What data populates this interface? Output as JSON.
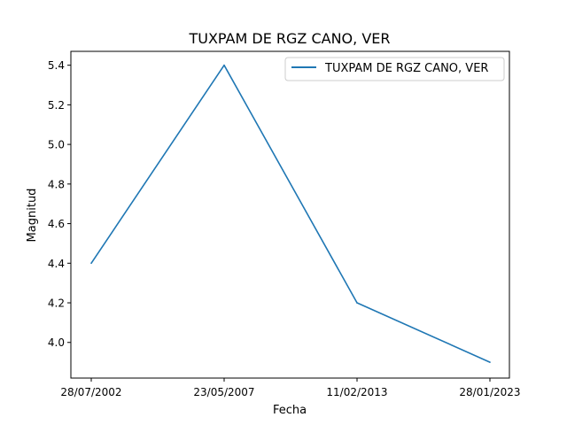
{
  "chart_data": {
    "type": "line",
    "title": "TUXPAM DE RGZ CANO, VER",
    "xlabel": "Fecha",
    "ylabel": "Magnitud",
    "categories": [
      "28/07/2002",
      "23/05/2007",
      "11/02/2013",
      "28/01/2023"
    ],
    "series": [
      {
        "name": "TUXPAM DE RGZ CANO, VER",
        "values": [
          4.4,
          5.4,
          4.2,
          3.9
        ],
        "color": "#1f77b4"
      }
    ],
    "ylim": [
      3.82,
      5.47
    ],
    "yticks": [
      "4.0",
      "4.2",
      "4.4",
      "4.6",
      "4.8",
      "5.0",
      "5.2",
      "5.4"
    ],
    "grid": false,
    "legend_position": "top-right"
  }
}
